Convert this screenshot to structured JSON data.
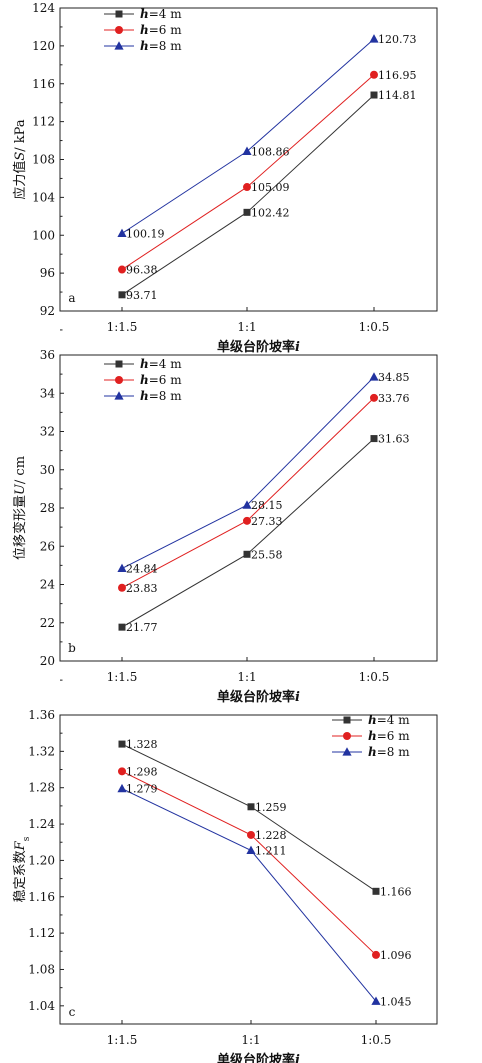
{
  "chart_data": [
    {
      "type": "line",
      "panel_label": "a",
      "categories": [
        "1:1.5",
        "1:1",
        "1:0.5"
      ],
      "ylabel_parts": [
        "应力值",
        "S",
        "/ kPa"
      ],
      "xlabel_parts": [
        "单级台阶坡率",
        "i"
      ],
      "ylim": [
        92,
        124
      ],
      "yticks": [
        92,
        96,
        100,
        104,
        108,
        112,
        116,
        120,
        124
      ],
      "legend_position": "top-left",
      "series": [
        {
          "name_var": "h",
          "name_rest": "=4  m",
          "marker": "square",
          "color": "#333333",
          "values": [
            93.71,
            102.42,
            114.81
          ],
          "labels": [
            "93.71",
            "102.42",
            "114.81"
          ]
        },
        {
          "name_var": "h",
          "name_rest": "=6  m",
          "marker": "circle",
          "color": "#e02020",
          "values": [
            96.38,
            105.09,
            116.95
          ],
          "labels": [
            "96.38",
            "105.09",
            "116.95"
          ]
        },
        {
          "name_var": "h",
          "name_rest": "=8  m",
          "marker": "triangle",
          "color": "#2233a0",
          "values": [
            100.19,
            108.86,
            120.73
          ],
          "labels": [
            "100.19",
            "108.86",
            "120.73"
          ]
        }
      ]
    },
    {
      "type": "line",
      "panel_label": "b",
      "categories": [
        "1:1.5",
        "1:1",
        "1:0.5"
      ],
      "ylabel_parts": [
        "位移变形量",
        "U",
        "/ cm"
      ],
      "xlabel_parts": [
        "单级台阶坡率",
        "i"
      ],
      "ylim": [
        20,
        36
      ],
      "yticks": [
        20,
        22,
        24,
        26,
        28,
        30,
        32,
        34,
        36
      ],
      "legend_position": "top-left",
      "series": [
        {
          "name_var": "h",
          "name_rest": "=4  m",
          "marker": "square",
          "color": "#333333",
          "values": [
            21.77,
            25.58,
            31.63
          ],
          "labels": [
            "21.77",
            "25.58",
            "31.63"
          ]
        },
        {
          "name_var": "h",
          "name_rest": "=6  m",
          "marker": "circle",
          "color": "#e02020",
          "values": [
            23.83,
            27.33,
            33.76
          ],
          "labels": [
            "23.83",
            "27.33",
            "33.76"
          ]
        },
        {
          "name_var": "h",
          "name_rest": "=8  m",
          "marker": "triangle",
          "color": "#2233a0",
          "values": [
            24.84,
            28.15,
            34.85
          ],
          "labels": [
            "24.84",
            "28.15",
            "34.85"
          ]
        }
      ]
    },
    {
      "type": "line",
      "panel_label": "c",
      "categories": [
        "1:1.5",
        "1:1",
        "1:0.5"
      ],
      "ylabel_parts": [
        "稳定系数",
        "F",
        "s"
      ],
      "xlabel_parts": [
        "单级台阶坡率",
        "i"
      ],
      "ylim": [
        1.02,
        1.36
      ],
      "yticks": [
        "1.04",
        "1.08",
        "1.12",
        "1.16",
        "1.20",
        "1.24",
        "1.28",
        "1.32",
        "1.36"
      ],
      "legend_position": "top-right",
      "series": [
        {
          "name_var": "h",
          "name_rest": "=4  m",
          "marker": "square",
          "color": "#333333",
          "values": [
            1.328,
            1.259,
            1.166
          ],
          "labels": [
            "1.328",
            "1.259",
            "1.166"
          ]
        },
        {
          "name_var": "h",
          "name_rest": "=6  m",
          "marker": "circle",
          "color": "#e02020",
          "values": [
            1.298,
            1.228,
            1.096
          ],
          "labels": [
            "1.298",
            "1.228",
            "1.096"
          ]
        },
        {
          "name_var": "h",
          "name_rest": "=8  m",
          "marker": "triangle",
          "color": "#2233a0",
          "values": [
            1.279,
            1.211,
            1.045
          ],
          "labels": [
            "1.279",
            "1.211",
            "1.045"
          ]
        }
      ]
    }
  ]
}
